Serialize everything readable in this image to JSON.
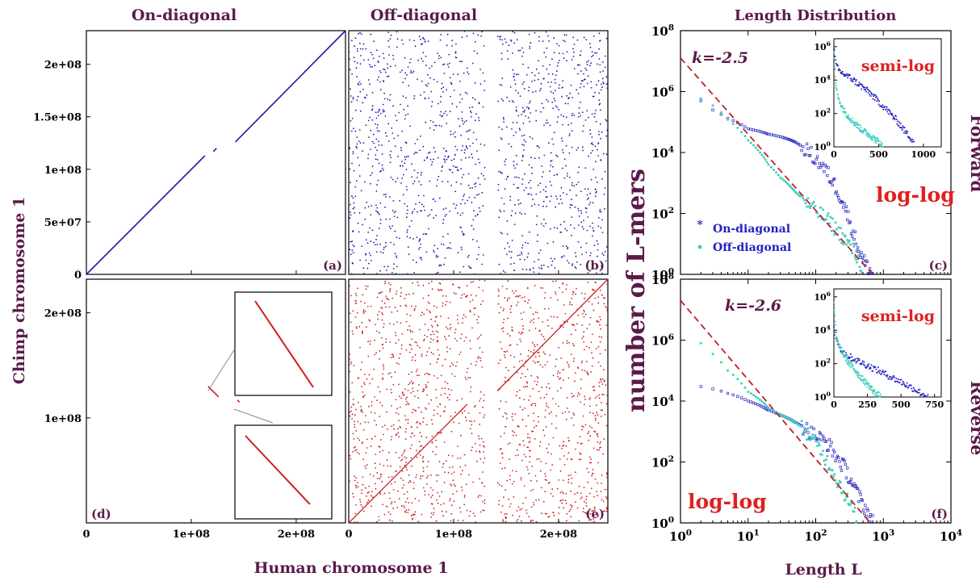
{
  "figure": {
    "col_titles": [
      "On-diagonal",
      "Off-diagonal",
      "Length Distribution"
    ],
    "xlabel_left": "Human chromosome 1",
    "ylabel_left": "Chimp chromosome 1",
    "xlabel_right": "Length L",
    "ylabel_right": "number of L-mers",
    "row_labels": [
      "Forward",
      "Reverse"
    ],
    "colors": {
      "title": "#5a1a4a",
      "forward_points": "#1a1aa8",
      "reverse_points": "#cc2020",
      "on_diagonal_series": "#2222c0",
      "off_diagonal_series": "#40d0c0",
      "fit_line": "#c02020",
      "annotation_red": "#e02020",
      "annotation_purple": "#5a1a4a"
    }
  },
  "chart_data": [
    {
      "panel": "(a)",
      "type": "scatter",
      "group": "On-diagonal / Forward",
      "xticks": [
        "0",
        "1e+08",
        "2e+08"
      ],
      "yticks": [
        "0",
        "5e+07",
        "1e+08",
        "1.5e+08",
        "2e+08"
      ],
      "xlim": [
        0,
        247000000
      ],
      "ylim": [
        0,
        232000000
      ],
      "segments": [
        {
          "x": [
            0,
            113000000
          ],
          "y": [
            0,
            113000000
          ]
        },
        {
          "x": [
            121000000,
            124000000
          ],
          "y": [
            117000000,
            120000000
          ]
        },
        {
          "x": [
            142000000,
            247000000
          ],
          "y": [
            126000000,
            232000000
          ]
        }
      ]
    },
    {
      "panel": "(b)",
      "type": "scatter",
      "group": "Off-diagonal / Forward",
      "xticks": [
        "0",
        "1e+08",
        "2e+08"
      ],
      "xlim": [
        0,
        247000000
      ],
      "ylim": [
        0,
        232000000
      ],
      "note": "scattered dots, blank vertical band near 1.3e+08-1.42e+08"
    },
    {
      "panel": "(c)",
      "type": "scatter",
      "group": "Length Distribution / Forward",
      "xscale": "log",
      "yscale": "log",
      "xlim": [
        1,
        10000
      ],
      "ylim": [
        1,
        100000000
      ],
      "legend": [
        "On-diagonal",
        "Off-diagonal"
      ],
      "legend_position": "bottom-left",
      "annotations": [
        "k=-2.5",
        "log-log"
      ],
      "fit_line": {
        "slope": -2.5,
        "intercept_at_x1": 12600000
      },
      "series": [
        {
          "name": "On-diagonal",
          "x": [
            2,
            3,
            5,
            10,
            20,
            30,
            50,
            80,
            100,
            150,
            200,
            250,
            300,
            400,
            500,
            600,
            700
          ],
          "y": [
            500000,
            250000,
            130000,
            60000,
            40000,
            33000,
            22000,
            10000,
            6000,
            2000,
            700,
            250,
            80,
            10,
            3,
            1.5,
            1
          ]
        },
        {
          "name": "Off-diagonal",
          "x": [
            2,
            3,
            5,
            10,
            20,
            30,
            50,
            80,
            100,
            150,
            200,
            300,
            400,
            500
          ],
          "y": [
            600000,
            350000,
            120000,
            25000,
            4000,
            1500,
            500,
            180,
            120,
            60,
            30,
            10,
            4,
            1.5
          ]
        }
      ],
      "inset": {
        "label": "semi-log",
        "xticks": [
          "0",
          "500",
          "1000"
        ],
        "yticks": [
          "10^0",
          "10^2",
          "10^4",
          "10^6"
        ],
        "xlim": [
          0,
          1200
        ],
        "ylim": [
          1,
          3000000
        ],
        "series": [
          {
            "name": "On-diagonal",
            "x": [
              0,
              20,
              50,
              100,
              200,
              300,
              400,
              500,
              600,
              700,
              800,
              900
            ],
            "y": [
              1000000,
              100000,
              40000,
              25000,
              12000,
              4500,
              1800,
              500,
              150,
              40,
              8,
              2
            ]
          },
          {
            "name": "Off-diagonal",
            "x": [
              0,
              20,
              50,
              100,
              150,
              200,
              300,
              400,
              500,
              550
            ],
            "y": [
              500000,
              5000,
              800,
              200,
              80,
              40,
              12,
              5,
              2,
              1
            ]
          }
        ]
      }
    },
    {
      "panel": "(d)",
      "type": "scatter",
      "group": "On-diagonal / Reverse",
      "xticks": [
        "0",
        "1e+08",
        "2e+08"
      ],
      "yticks": [
        "1e+08",
        "2e+08"
      ],
      "xlim": [
        0,
        247000000
      ],
      "ylim": [
        0,
        232000000
      ],
      "segments": [
        {
          "x": [
            116000000,
            126000000
          ],
          "y": [
            130000000,
            120000000
          ]
        },
        {
          "x": [
            144000000,
            146000000
          ],
          "y": [
            117000000,
            115000000
          ]
        }
      ],
      "zoom_insets": 2
    },
    {
      "panel": "(e)",
      "type": "scatter",
      "group": "Off-diagonal / Reverse",
      "xticks": [
        "0",
        "1e+08",
        "2e+08"
      ],
      "xlim": [
        0,
        247000000
      ],
      "ylim": [
        0,
        232000000
      ],
      "segments": [
        {
          "x": [
            0,
            113000000
          ],
          "y": [
            0,
            113000000
          ]
        },
        {
          "x": [
            142000000,
            247000000
          ],
          "y": [
            126000000,
            232000000
          ]
        }
      ],
      "note": "scattered dots, blank vertical band near 1.3e+08-1.42e+08"
    },
    {
      "panel": "(f)",
      "type": "scatter",
      "group": "Length Distribution / Reverse",
      "xscale": "log",
      "yscale": "log",
      "xticks": [
        "10^0",
        "10^1",
        "10^2",
        "10^3",
        "10^4"
      ],
      "yticks": [
        "10^0",
        "10^2",
        "10^4",
        "10^6",
        "10^8"
      ],
      "xlim": [
        1,
        10000
      ],
      "ylim": [
        1,
        100000000
      ],
      "annotations": [
        "k=-2.6",
        "log-log"
      ],
      "fit_line": {
        "slope": -2.6,
        "intercept_at_x1": 20000000
      },
      "series": [
        {
          "name": "On-diagonal",
          "x": [
            2,
            3,
            5,
            10,
            20,
            30,
            50,
            80,
            100,
            150,
            200,
            300,
            400,
            500,
            600,
            700
          ],
          "y": [
            30000,
            25000,
            18000,
            10000,
            5000,
            3500,
            2000,
            1000,
            700,
            400,
            150,
            40,
            10,
            4,
            2,
            1
          ]
        },
        {
          "name": "Off-diagonal",
          "x": [
            2,
            3,
            5,
            10,
            20,
            30,
            50,
            80,
            100,
            150,
            200,
            300,
            400
          ],
          "y": [
            800000,
            350000,
            100000,
            20000,
            6000,
            3500,
            2000,
            800,
            400,
            100,
            30,
            5,
            1.5
          ]
        }
      ],
      "inset": {
        "label": "semi-log",
        "xticks": [
          "0",
          "250",
          "500",
          "750"
        ],
        "yticks": [
          "10^0",
          "10^2",
          "10^4",
          "10^6"
        ],
        "xlim": [
          0,
          800
        ],
        "ylim": [
          1,
          3000000
        ],
        "series": [
          {
            "name": "On-diagonal",
            "x": [
              0,
              20,
              50,
              100,
              200,
              300,
              400,
              500,
              600,
              700
            ],
            "y": [
              10000,
              3000,
              800,
              300,
              120,
              50,
              20,
              8,
              3,
              1
            ]
          },
          {
            "name": "Off-diagonal",
            "x": [
              0,
              20,
              50,
              100,
              150,
              200,
              250,
              300,
              350
            ],
            "y": [
              300000,
              3000,
              700,
              150,
              50,
              15,
              6,
              2,
              1
            ]
          }
        ]
      }
    }
  ]
}
